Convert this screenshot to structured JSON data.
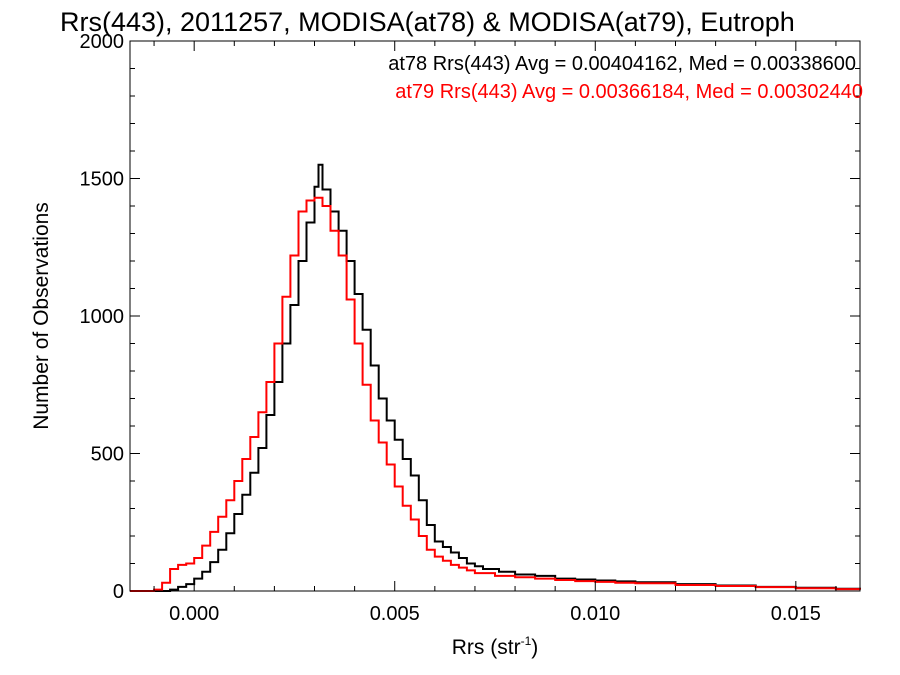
{
  "chart_data": {
    "type": "line",
    "style": "histogram-step",
    "title": "Rrs(443), 2011257, MODISA(at78) & MODISA(at79), Eutroph",
    "xlabel": "Rrs (str",
    "xlabel_sup": "-1",
    "xlabel_close": ")",
    "ylabel": "Number of Observations",
    "xlim": [
      -0.0016,
      0.0166
    ],
    "ylim": [
      0,
      2000
    ],
    "grid": false,
    "legend_position": "top-right",
    "x_ticks": [
      {
        "value": 0.0,
        "label": "0.000"
      },
      {
        "value": 0.005,
        "label": "0.005"
      },
      {
        "value": 0.01,
        "label": "0.010"
      },
      {
        "value": 0.015,
        "label": "0.015"
      }
    ],
    "y_ticks": [
      {
        "value": 0,
        "label": "0"
      },
      {
        "value": 500,
        "label": "500"
      },
      {
        "value": 1000,
        "label": "1000"
      },
      {
        "value": 1500,
        "label": "1500"
      },
      {
        "value": 2000,
        "label": "2000"
      }
    ],
    "legend": [
      {
        "text": "at78 Rrs(443) Avg = 0.00404162, Med = 0.00338600",
        "color": "#000000"
      },
      {
        "text": "at79 Rrs(443) Avg = 0.00366184, Med = 0.00302440",
        "color": "#ff0000"
      }
    ],
    "series": [
      {
        "color": "#000000",
        "points": [
          [
            -0.0016,
            0
          ],
          [
            -0.0012,
            0
          ],
          [
            -0.0008,
            0
          ],
          [
            -0.0006,
            5
          ],
          [
            -0.0004,
            15
          ],
          [
            -0.0002,
            25
          ],
          [
            0.0,
            45
          ],
          [
            0.0002,
            70
          ],
          [
            0.0004,
            105
          ],
          [
            0.0006,
            150
          ],
          [
            0.0008,
            210
          ],
          [
            0.001,
            280
          ],
          [
            0.0012,
            350
          ],
          [
            0.0014,
            430
          ],
          [
            0.0016,
            520
          ],
          [
            0.0018,
            640
          ],
          [
            0.002,
            760
          ],
          [
            0.0022,
            900
          ],
          [
            0.0024,
            1040
          ],
          [
            0.0026,
            1200
          ],
          [
            0.0028,
            1340
          ],
          [
            0.003,
            1470
          ],
          [
            0.0031,
            1550
          ],
          [
            0.0032,
            1460
          ],
          [
            0.0034,
            1380
          ],
          [
            0.0036,
            1310
          ],
          [
            0.0038,
            1200
          ],
          [
            0.004,
            1080
          ],
          [
            0.0042,
            950
          ],
          [
            0.0044,
            820
          ],
          [
            0.0046,
            700
          ],
          [
            0.0048,
            620
          ],
          [
            0.005,
            550
          ],
          [
            0.0052,
            480
          ],
          [
            0.0054,
            420
          ],
          [
            0.0056,
            330
          ],
          [
            0.0058,
            240
          ],
          [
            0.006,
            180
          ],
          [
            0.0062,
            160
          ],
          [
            0.0064,
            140
          ],
          [
            0.0066,
            120
          ],
          [
            0.0068,
            100
          ],
          [
            0.007,
            90
          ],
          [
            0.0072,
            80
          ],
          [
            0.0076,
            70
          ],
          [
            0.008,
            60
          ],
          [
            0.0085,
            55
          ],
          [
            0.009,
            45
          ],
          [
            0.0095,
            42
          ],
          [
            0.01,
            38
          ],
          [
            0.0105,
            35
          ],
          [
            0.011,
            32
          ],
          [
            0.012,
            25
          ],
          [
            0.013,
            20
          ],
          [
            0.014,
            15
          ],
          [
            0.015,
            12
          ],
          [
            0.016,
            8
          ],
          [
            0.0166,
            5
          ]
        ]
      },
      {
        "color": "#ff0000",
        "points": [
          [
            -0.0016,
            0
          ],
          [
            -0.0014,
            0
          ],
          [
            -0.0012,
            0
          ],
          [
            -0.001,
            5
          ],
          [
            -0.0008,
            30
          ],
          [
            -0.0006,
            80
          ],
          [
            -0.0004,
            95
          ],
          [
            -0.0002,
            100
          ],
          [
            0.0,
            120
          ],
          [
            0.0002,
            165
          ],
          [
            0.0004,
            215
          ],
          [
            0.0006,
            270
          ],
          [
            0.0008,
            330
          ],
          [
            0.001,
            400
          ],
          [
            0.0012,
            480
          ],
          [
            0.0014,
            560
          ],
          [
            0.0016,
            650
          ],
          [
            0.0018,
            760
          ],
          [
            0.002,
            900
          ],
          [
            0.0022,
            1070
          ],
          [
            0.0024,
            1220
          ],
          [
            0.0026,
            1380
          ],
          [
            0.0028,
            1420
          ],
          [
            0.003,
            1430
          ],
          [
            0.0032,
            1400
          ],
          [
            0.0034,
            1310
          ],
          [
            0.0036,
            1220
          ],
          [
            0.0038,
            1060
          ],
          [
            0.004,
            900
          ],
          [
            0.0042,
            750
          ],
          [
            0.0044,
            620
          ],
          [
            0.0046,
            540
          ],
          [
            0.0048,
            460
          ],
          [
            0.005,
            380
          ],
          [
            0.0052,
            310
          ],
          [
            0.0054,
            260
          ],
          [
            0.0056,
            200
          ],
          [
            0.0058,
            150
          ],
          [
            0.006,
            125
          ],
          [
            0.0062,
            110
          ],
          [
            0.0064,
            95
          ],
          [
            0.0066,
            85
          ],
          [
            0.0068,
            75
          ],
          [
            0.007,
            65
          ],
          [
            0.0075,
            55
          ],
          [
            0.008,
            50
          ],
          [
            0.0085,
            45
          ],
          [
            0.009,
            40
          ],
          [
            0.0095,
            36
          ],
          [
            0.01,
            33
          ],
          [
            0.0105,
            30
          ],
          [
            0.011,
            28
          ],
          [
            0.012,
            22
          ],
          [
            0.013,
            18
          ],
          [
            0.014,
            14
          ],
          [
            0.015,
            10
          ],
          [
            0.016,
            7
          ],
          [
            0.0166,
            5
          ]
        ]
      }
    ]
  }
}
